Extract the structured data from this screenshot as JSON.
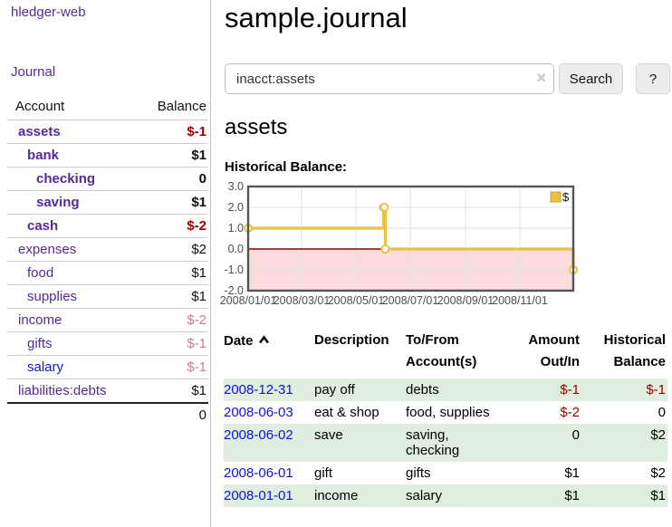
{
  "app": {
    "brand": "hledger-web"
  },
  "sidebar": {
    "journal_link": "Journal",
    "account_header": "Account",
    "balance_header": "Balance",
    "accounts": [
      {
        "label": "assets",
        "depth": 0,
        "bold": true,
        "link_color": "purple",
        "balance": "$-1",
        "balance_class": "strong-neg"
      },
      {
        "label": "bank",
        "depth": 1,
        "bold": true,
        "link_color": "purple",
        "balance": "$1",
        "balance_class": "bold-pos"
      },
      {
        "label": "checking",
        "depth": 2,
        "bold": true,
        "link_color": "purple",
        "balance": "0",
        "balance_class": "bold-pos"
      },
      {
        "label": "saving",
        "depth": 2,
        "bold": true,
        "link_color": "purple",
        "balance": "$1",
        "balance_class": "bold-pos"
      },
      {
        "label": "cash",
        "depth": 1,
        "bold": true,
        "link_color": "purple",
        "balance": "$-2",
        "balance_class": "strong-neg"
      },
      {
        "label": "expenses",
        "depth": 0,
        "bold": false,
        "link_color": "purple",
        "balance": "$2",
        "balance_class": "plain"
      },
      {
        "label": "food",
        "depth": 1,
        "bold": false,
        "link_color": "purple",
        "balance": "$1",
        "balance_class": "plain"
      },
      {
        "label": "supplies",
        "depth": 1,
        "bold": false,
        "link_color": "purple",
        "balance": "$1",
        "balance_class": "plain"
      },
      {
        "label": "income",
        "depth": 0,
        "bold": false,
        "link_color": "purple",
        "balance": "$-2",
        "balance_class": "muted-neg"
      },
      {
        "label": "gifts",
        "depth": 1,
        "bold": false,
        "link_color": "purple",
        "balance": "$-1",
        "balance_class": "muted-neg"
      },
      {
        "label": "salary",
        "depth": 1,
        "bold": false,
        "link_color": "blue",
        "balance": "$-1",
        "balance_class": "muted-neg"
      },
      {
        "label": "liabilities:debts",
        "depth": 0,
        "bold": false,
        "link_color": "purple",
        "balance": "$1",
        "balance_class": "plain"
      }
    ],
    "total": "0"
  },
  "main": {
    "title": "sample.journal",
    "search": {
      "value": "inacct:assets",
      "clear_icon": "×",
      "button_label": "Search",
      "help_label": "?"
    },
    "account_heading": "assets",
    "chart_label": "Historical Balance:"
  },
  "chart_data": {
    "type": "line",
    "step": true,
    "title": "Historical Balance:",
    "x_start": "2008-01-01",
    "x_end": "2008-12-31",
    "ylim": [
      -2,
      3
    ],
    "y_ticks": [
      "3.0",
      "2.0",
      "1.0",
      "0.0",
      "-1.0",
      "-2.0"
    ],
    "x_ticks": [
      "2008/01/01",
      "2008/03/01",
      "2008/05/01",
      "2008/07/01",
      "2008/09/01",
      "2008/11/01"
    ],
    "series": [
      {
        "name": "$",
        "color": "#e8c240",
        "marker_fill": "#ffffff",
        "points": [
          [
            "2008-01-01",
            1
          ],
          [
            "2008-06-01",
            2
          ],
          [
            "2008-06-02",
            2
          ],
          [
            "2008-06-03",
            0
          ],
          [
            "2008-12-31",
            -1
          ]
        ]
      }
    ],
    "legend": {
      "label": "$",
      "position": "top-right",
      "swatch_color": "#e8c240",
      "swatch_border": "#c9a227"
    },
    "grid_color": "#e2e2e2",
    "border_color": "#555555",
    "zero_line_color": "#8b0000",
    "negative_region_color": "#fbdcdc"
  },
  "register": {
    "headers": {
      "date": "Date",
      "description": "Description",
      "account_line1": "To/From",
      "account_line2": "Account(s)",
      "amount_line1": "Amount",
      "amount_line2": "Out/In",
      "balance_line1": "Historical",
      "balance_line2": "Balance"
    },
    "rows": [
      {
        "date": "2008-12-31",
        "description": "pay off",
        "accounts": "debts",
        "amount": "$-1",
        "amount_neg": true,
        "balance": "$-1",
        "balance_neg": true
      },
      {
        "date": "2008-06-03",
        "description": "eat & shop",
        "accounts": "food, supplies",
        "amount": "$-2",
        "amount_neg": true,
        "balance": "0",
        "balance_neg": false
      },
      {
        "date": "2008-06-02",
        "description": "save",
        "accounts": "saving, checking",
        "amount": "0",
        "amount_neg": false,
        "balance": "$2",
        "balance_neg": false
      },
      {
        "date": "2008-06-01",
        "description": "gift",
        "accounts": "gifts",
        "amount": "$1",
        "amount_neg": false,
        "balance": "$2",
        "balance_neg": false
      },
      {
        "date": "2008-01-01",
        "description": "income",
        "accounts": "salary",
        "amount": "$1",
        "amount_neg": false,
        "balance": "$1",
        "balance_neg": false
      }
    ]
  }
}
